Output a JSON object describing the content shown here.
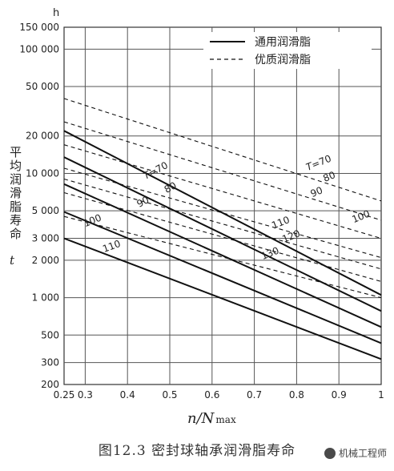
{
  "chart_data": {
    "type": "line",
    "title": "",
    "xlabel": "n/N",
    "xlabel_sub": "max",
    "ylabel": "平均润滑脂寿命",
    "ylabel_symbol": "t",
    "y_unit": "h",
    "y_scale": "log",
    "xlim": [
      0.25,
      1.0
    ],
    "ylim": [
      200,
      150000
    ],
    "grid": true,
    "x_ticks": [
      0.25,
      0.3,
      0.4,
      0.5,
      0.6,
      0.7,
      0.8,
      0.9,
      1.0
    ],
    "x_tick_labels": [
      "0.25",
      "0.3",
      "0.4",
      "0.5",
      "0.6",
      "0.7",
      "0.8",
      "0.9",
      "1"
    ],
    "y_ticks": [
      200,
      300,
      500,
      1000,
      2000,
      3000,
      5000,
      10000,
      20000,
      50000,
      100000,
      150000
    ],
    "y_tick_labels": [
      "200",
      "300",
      "500",
      "1 000",
      "2 000",
      "3 000",
      "5 000",
      "10 000",
      "20 000",
      "50 000",
      "100 000",
      "150 000"
    ],
    "legend": {
      "placement": "top-right",
      "entries": [
        {
          "label": "通用润滑脂",
          "style": "solid"
        },
        {
          "label": "优质润滑脂",
          "style": "dashed"
        }
      ]
    },
    "series": [
      {
        "name": "T=70",
        "style": "solid",
        "x": [
          0.25,
          1.0
        ],
        "y": [
          22000,
          1050
        ]
      },
      {
        "name": "80",
        "style": "solid",
        "x": [
          0.25,
          1.0
        ],
        "y": [
          13500,
          780
        ]
      },
      {
        "name": "90",
        "style": "solid",
        "x": [
          0.25,
          1.0
        ],
        "y": [
          8200,
          580
        ]
      },
      {
        "name": "100",
        "style": "solid",
        "x": [
          0.25,
          1.0
        ],
        "y": [
          4900,
          430
        ]
      },
      {
        "name": "110",
        "style": "solid",
        "x": [
          0.25,
          1.0
        ],
        "y": [
          3000,
          320
        ]
      },
      {
        "name": "T=70",
        "style": "dashed",
        "x": [
          0.25,
          1.0
        ],
        "y": [
          40000,
          6000
        ]
      },
      {
        "name": "80",
        "style": "dashed",
        "x": [
          0.25,
          1.0
        ],
        "y": [
          26000,
          4200
        ]
      },
      {
        "name": "90",
        "style": "dashed",
        "x": [
          0.25,
          1.0
        ],
        "y": [
          17000,
          3000
        ]
      },
      {
        "name": "100",
        "style": "dashed",
        "x": [
          0.25,
          1.0
        ],
        "y": [
          11000,
          2100
        ]
      },
      {
        "name": "110",
        "style": "dashed",
        "x": [
          0.25,
          1.0
        ],
        "y": [
          9000,
          1700
        ]
      },
      {
        "name": "120",
        "style": "dashed",
        "x": [
          0.25,
          1.0
        ],
        "y": [
          7000,
          1350
        ]
      },
      {
        "name": "130",
        "style": "dashed",
        "x": [
          0.25,
          1.0
        ],
        "y": [
          4500,
          1000
        ]
      }
    ],
    "curve_labels": [
      {
        "text": "T=70",
        "x": 0.47,
        "y": 10000,
        "angle": -28
      },
      {
        "text": "80",
        "x": 0.505,
        "y": 7300,
        "angle": -28
      },
      {
        "text": "90",
        "x": 0.44,
        "y": 5600,
        "angle": -28
      },
      {
        "text": "100",
        "x": 0.32,
        "y": 3950,
        "angle": -22
      },
      {
        "text": "110",
        "x": 0.365,
        "y": 2450,
        "angle": -20
      },
      {
        "text": "T=70",
        "x": 0.855,
        "y": 11500,
        "angle": -22
      },
      {
        "text": "80",
        "x": 0.88,
        "y": 8900,
        "angle": -22
      },
      {
        "text": "90",
        "x": 0.85,
        "y": 6700,
        "angle": -22
      },
      {
        "text": "100",
        "x": 0.955,
        "y": 4250,
        "angle": -22
      },
      {
        "text": "110",
        "x": 0.765,
        "y": 3800,
        "angle": -22
      },
      {
        "text": "120",
        "x": 0.79,
        "y": 2950,
        "angle": -22
      },
      {
        "text": "130",
        "x": 0.74,
        "y": 2150,
        "angle": -22
      }
    ]
  },
  "caption": "图12.3   密封球轴承润滑脂寿命",
  "watermark": "机械工程师"
}
